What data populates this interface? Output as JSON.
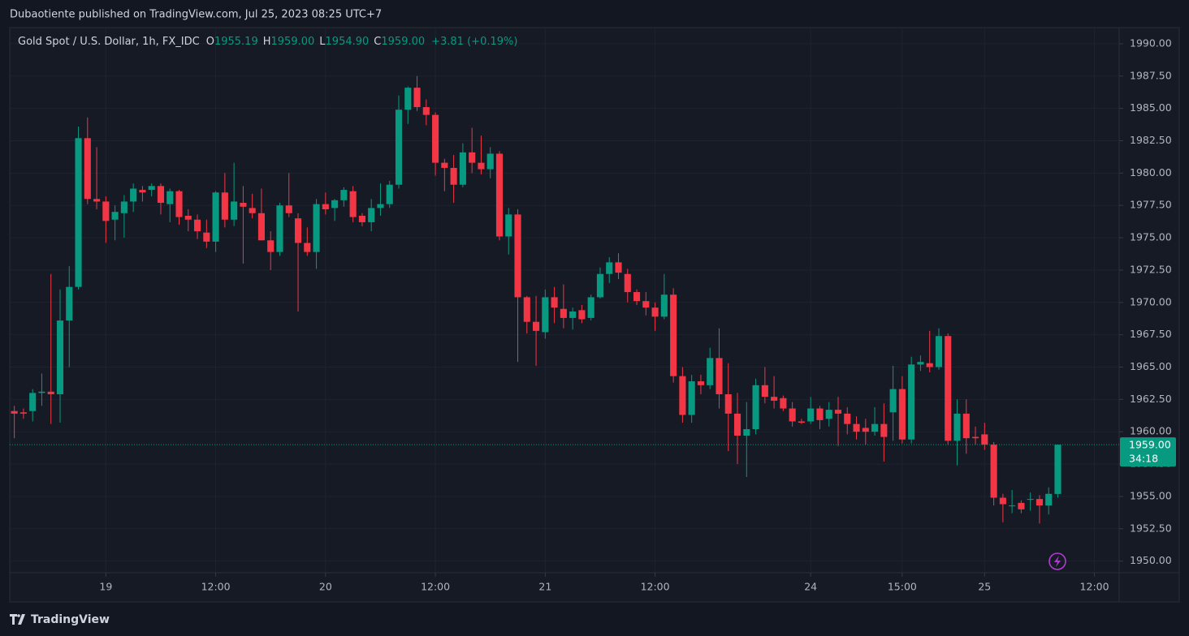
{
  "published": "Dubaotiente published on TradingView.com, Jul 25, 2023 08:25 UTC+7",
  "brand": "TradingView",
  "chart_data": {
    "type": "candlestick",
    "title": "Gold Spot / U.S. Dollar, 1h, FX_IDC",
    "legend_fields": [
      {
        "key": "O",
        "value": "1955.19"
      },
      {
        "key": "H",
        "value": "1959.00"
      },
      {
        "key": "L",
        "value": "1954.90"
      },
      {
        "key": "C",
        "value": "1959.00"
      }
    ],
    "change": "+3.81 (+0.19%)",
    "up_color": "#089981",
    "down_color": "#f23645",
    "open": [
      1961.6,
      1961.5,
      1961.6,
      1963.0,
      1963.1,
      1962.9,
      1968.6,
      1971.2,
      1982.7,
      1978.0,
      1977.8,
      1976.4,
      1976.9,
      1977.8,
      1978.7,
      1978.7,
      1979.0,
      1977.6,
      1978.6,
      1976.7,
      1976.4,
      1975.4,
      1974.7,
      1978.5,
      1976.4,
      1977.7,
      1977.3,
      1976.9,
      1974.8,
      1973.9,
      1977.5,
      1976.5,
      1974.6,
      1973.9,
      1977.6,
      1977.3,
      1977.9,
      1978.6,
      1976.7,
      1976.2,
      1977.3,
      1977.6,
      1979.1,
      1984.9,
      1986.6,
      1985.1,
      1984.5,
      1980.8,
      1980.4,
      1979.1,
      1981.6,
      1980.8,
      1980.3,
      1981.5,
      1975.1,
      1976.8,
      1970.4,
      1968.5,
      1967.7,
      1970.4,
      1969.5,
      1968.8,
      1969.4,
      1968.8,
      1970.4,
      1972.2,
      1973.1,
      1972.2,
      1970.8,
      1970.1,
      1969.6,
      1968.9,
      1970.6,
      1964.3,
      1961.3,
      1963.9,
      1963.6,
      1965.7,
      1962.9,
      1961.4,
      1959.7,
      1960.2,
      1963.6,
      1962.7,
      1962.6,
      1961.8,
      1960.8,
      1960.8,
      1961.8,
      1961.0,
      1961.7,
      1961.4,
      1960.6,
      1960.3,
      1960.0,
      1960.6,
      1961.5,
      1963.3,
      1959.4,
      1965.2,
      1965.3,
      1965.0,
      1967.4,
      1959.3,
      1961.4,
      1959.6,
      1959.8,
      1959.0,
      1954.9,
      1954.3,
      1954.5,
      1954.8,
      1954.8,
      1954.3,
      1955.19
    ],
    "high": [
      1962.0,
      1961.8,
      1963.3,
      1964.5,
      1972.2,
      1971.0,
      1972.8,
      1983.6,
      1984.3,
      1982.0,
      1978.2,
      1977.5,
      1978.3,
      1979.2,
      1979.0,
      1979.2,
      1979.2,
      1978.8,
      1978.7,
      1977.2,
      1976.8,
      1976.4,
      1978.6,
      1980.0,
      1980.8,
      1979.0,
      1978.4,
      1978.8,
      1975.5,
      1977.7,
      1980.0,
      1976.9,
      1975.8,
      1978.0,
      1978.5,
      1978.0,
      1978.9,
      1979.0,
      1976.9,
      1978.0,
      1979.2,
      1979.4,
      1986.0,
      1986.7,
      1987.5,
      1985.7,
      1984.7,
      1981.1,
      1981.4,
      1982.3,
      1983.5,
      1982.9,
      1982.0,
      1981.7,
      1977.3,
      1977.2,
      1970.5,
      1970.5,
      1971.0,
      1971.2,
      1971.4,
      1969.6,
      1969.8,
      1970.6,
      1972.7,
      1973.5,
      1973.8,
      1972.6,
      1971.0,
      1970.8,
      1970.0,
      1972.2,
      1971.1,
      1965.0,
      1964.4,
      1964.4,
      1966.5,
      1968.0,
      1965.3,
      1963.0,
      1962.3,
      1964.1,
      1965.0,
      1964.3,
      1962.8,
      1962.3,
      1961.0,
      1962.7,
      1962.0,
      1962.3,
      1962.7,
      1961.9,
      1961.2,
      1961.0,
      1961.9,
      1962.2,
      1965.1,
      1964.3,
      1965.8,
      1965.9,
      1967.8,
      1968.0,
      1967.6,
      1962.5,
      1962.5,
      1960.4,
      1960.7,
      1959.2,
      1955.2,
      1955.5,
      1954.7,
      1955.3,
      1955.1,
      1955.7,
      1959.0
    ],
    "low": [
      1959.5,
      1961.0,
      1960.8,
      1962.0,
      1960.6,
      1960.7,
      1965.0,
      1971.0,
      1977.6,
      1977.2,
      1974.6,
      1974.8,
      1975.0,
      1977.0,
      1977.8,
      1978.2,
      1976.8,
      1976.2,
      1976.0,
      1975.5,
      1974.9,
      1974.2,
      1973.9,
      1975.8,
      1975.9,
      1973.0,
      1976.5,
      1974.8,
      1972.5,
      1973.6,
      1976.6,
      1969.3,
      1973.6,
      1972.6,
      1976.8,
      1976.3,
      1977.4,
      1976.2,
      1975.9,
      1975.5,
      1976.7,
      1977.3,
      1978.8,
      1983.8,
      1984.8,
      1983.7,
      1979.8,
      1978.6,
      1977.7,
      1978.9,
      1980.0,
      1979.9,
      1979.6,
      1974.8,
      1973.7,
      1965.4,
      1967.6,
      1965.1,
      1967.2,
      1968.4,
      1968.0,
      1967.9,
      1968.4,
      1968.6,
      1970.3,
      1971.5,
      1971.8,
      1970.0,
      1969.8,
      1969.0,
      1967.8,
      1968.7,
      1963.8,
      1960.7,
      1960.7,
      1962.9,
      1963.3,
      1961.8,
      1958.5,
      1957.5,
      1956.5,
      1959.8,
      1962.2,
      1961.8,
      1961.6,
      1960.4,
      1960.6,
      1960.6,
      1960.2,
      1960.4,
      1958.9,
      1959.8,
      1959.4,
      1959.0,
      1959.7,
      1957.7,
      1959.3,
      1959.1,
      1959.1,
      1964.7,
      1964.6,
      1964.8,
      1959.0,
      1957.4,
      1958.3,
      1959.0,
      1958.6,
      1954.3,
      1953.0,
      1953.7,
      1953.7,
      1953.9,
      1952.9,
      1953.6,
      1954.9
    ],
    "close": [
      1961.4,
      1961.4,
      1963.0,
      1963.1,
      1962.9,
      1968.6,
      1971.2,
      1982.7,
      1978.0,
      1977.8,
      1976.3,
      1977.0,
      1977.8,
      1978.8,
      1978.5,
      1979.0,
      1977.7,
      1978.6,
      1976.6,
      1976.4,
      1975.5,
      1974.7,
      1978.5,
      1976.4,
      1977.8,
      1977.4,
      1976.9,
      1974.8,
      1973.9,
      1977.5,
      1976.9,
      1974.6,
      1973.9,
      1977.6,
      1977.2,
      1977.9,
      1978.7,
      1976.6,
      1976.2,
      1977.3,
      1977.6,
      1979.1,
      1984.9,
      1986.6,
      1985.1,
      1984.5,
      1980.8,
      1980.4,
      1979.1,
      1981.6,
      1980.8,
      1980.3,
      1981.5,
      1975.1,
      1976.8,
      1970.4,
      1968.5,
      1967.8,
      1970.4,
      1969.6,
      1968.8,
      1969.3,
      1968.7,
      1970.4,
      1972.2,
      1973.1,
      1972.3,
      1970.8,
      1970.1,
      1969.6,
      1968.9,
      1970.6,
      1964.3,
      1961.3,
      1963.9,
      1963.6,
      1965.7,
      1962.9,
      1961.4,
      1959.7,
      1960.2,
      1963.6,
      1962.7,
      1962.4,
      1961.8,
      1960.8,
      1960.7,
      1961.8,
      1960.9,
      1961.7,
      1961.4,
      1960.6,
      1960.0,
      1960.0,
      1960.6,
      1959.6,
      1963.3,
      1959.4,
      1965.2,
      1965.4,
      1965.0,
      1967.4,
      1959.3,
      1961.4,
      1959.5,
      1959.5,
      1959.0,
      1954.9,
      1954.4,
      1954.3,
      1954.0,
      1954.8,
      1954.3,
      1955.2,
      1959.0
    ],
    "xlim": [
      -0.5,
      120.7
    ],
    "xticks": [
      {
        "value": 10,
        "label": "19"
      },
      {
        "value": 22,
        "label": "12:00"
      },
      {
        "value": 34,
        "label": "20"
      },
      {
        "value": 46,
        "label": "12:00"
      },
      {
        "value": 58,
        "label": "21"
      },
      {
        "value": 70,
        "label": "12:00"
      },
      {
        "value": 87,
        "label": "24"
      },
      {
        "value": 97,
        "label": "15:00"
      },
      {
        "value": 106,
        "label": "25"
      },
      {
        "value": 118,
        "label": "12:00"
      }
    ],
    "ylim": [
      1949.1,
      1991.25
    ],
    "yticks": [
      {
        "value": 1950,
        "label": "1950.00"
      },
      {
        "value": 1952.5,
        "label": "1952.50"
      },
      {
        "value": 1955,
        "label": "1955.00"
      },
      {
        "value": 1957.5,
        "label": "1957.50"
      },
      {
        "value": 1960,
        "label": "1960.00"
      },
      {
        "value": 1962.5,
        "label": "1962.50"
      },
      {
        "value": 1965,
        "label": "1965.00"
      },
      {
        "value": 1967.5,
        "label": "1967.50"
      },
      {
        "value": 1970,
        "label": "1970.00"
      },
      {
        "value": 1972.5,
        "label": "1972.50"
      },
      {
        "value": 1975,
        "label": "1975.00"
      },
      {
        "value": 1977.5,
        "label": "1977.50"
      },
      {
        "value": 1980,
        "label": "1980.00"
      },
      {
        "value": 1982.5,
        "label": "1982.50"
      },
      {
        "value": 1985,
        "label": "1985.00"
      },
      {
        "value": 1987.5,
        "label": "1987.50"
      },
      {
        "value": 1990,
        "label": "1990.00"
      }
    ],
    "grid": true,
    "last_price": {
      "value": 1959,
      "label": "1959.00"
    },
    "countdown": "34:18"
  }
}
